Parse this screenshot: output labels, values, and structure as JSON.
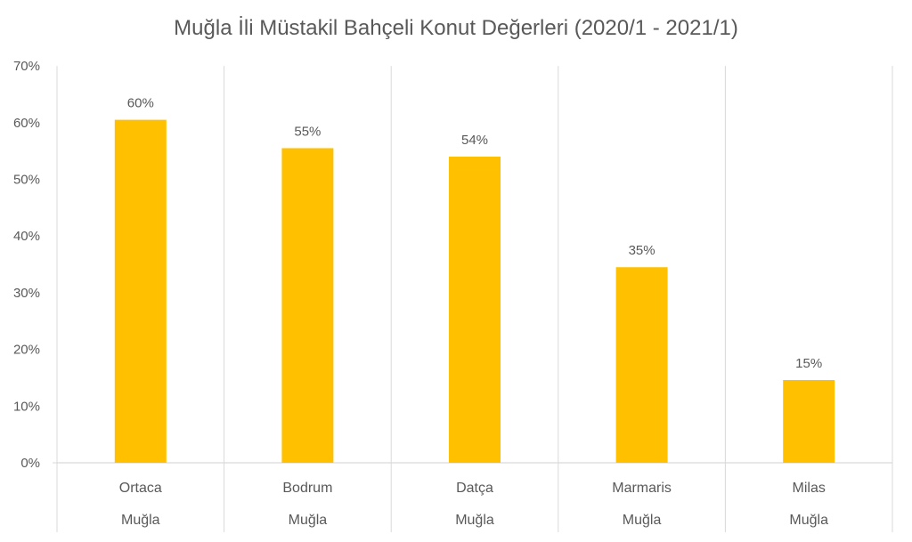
{
  "chart_data": {
    "type": "bar",
    "title": "Muğla İli Müstakil Bahçeli Konut Değerleri (2020/1 - 2021/1)",
    "xlabel": "",
    "ylabel": "",
    "categories": [
      "Ortaca",
      "Bodrum",
      "Datça",
      "Marmaris",
      "Milas"
    ],
    "group_labels": [
      "Muğla",
      "Muğla",
      "Muğla",
      "Muğla",
      "Muğla"
    ],
    "values": [
      60.5,
      55.5,
      54,
      34.5,
      14.6
    ],
    "data_labels": [
      "60%",
      "55%",
      "54%",
      "35%",
      "15%"
    ],
    "ylim": [
      0,
      70
    ],
    "yticks": [
      0,
      10,
      20,
      30,
      40,
      50,
      60,
      70
    ],
    "ytick_labels": [
      "0%",
      "10%",
      "20%",
      "30%",
      "40%",
      "50%",
      "60%",
      "70%"
    ],
    "grid": "vertical category separators",
    "legend": "none",
    "colors": {
      "bar": "#FFC000",
      "text": "#595959",
      "grid": "#D9D9D9"
    }
  }
}
